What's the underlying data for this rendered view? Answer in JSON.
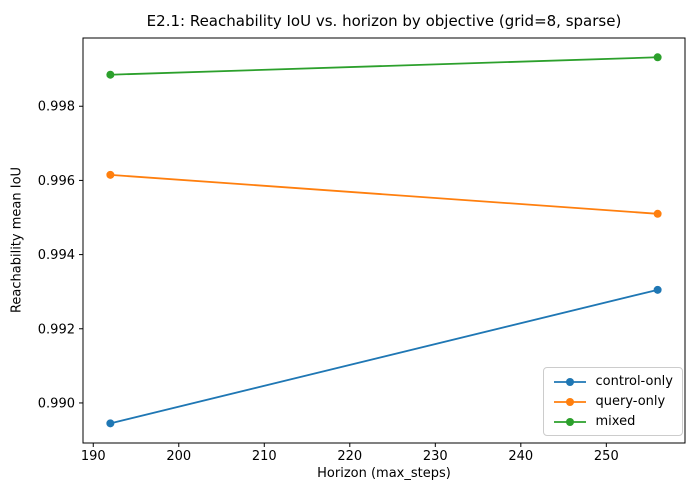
{
  "chart_data": {
    "type": "line",
    "title": "E2.1: Reachability IoU vs. horizon by objective (grid=8, sparse)",
    "xlabel": "Horizon (max_steps)",
    "ylabel": "Reachability mean IoU",
    "x": [
      192,
      256
    ],
    "series": [
      {
        "name": "control-only",
        "color": "#1f77b4",
        "values": [
          0.98945,
          0.99305
        ]
      },
      {
        "name": "query-only",
        "color": "#ff7f0e",
        "values": [
          0.99615,
          0.9951
        ]
      },
      {
        "name": "mixed",
        "color": "#2ca02c",
        "values": [
          0.99885,
          0.99932
        ]
      }
    ],
    "xticks": [
      {
        "value": 190,
        "label": "190"
      },
      {
        "value": 200,
        "label": "200"
      },
      {
        "value": 210,
        "label": "210"
      },
      {
        "value": 220,
        "label": "220"
      },
      {
        "value": 230,
        "label": "230"
      },
      {
        "value": 240,
        "label": "240"
      },
      {
        "value": 250,
        "label": "250"
      }
    ],
    "yticks": [
      {
        "value": 0.99,
        "label": "0.990"
      },
      {
        "value": 0.992,
        "label": "0.992"
      },
      {
        "value": 0.994,
        "label": "0.994"
      },
      {
        "value": 0.996,
        "label": "0.996"
      },
      {
        "value": 0.998,
        "label": "0.998"
      }
    ],
    "xlim": [
      188.8,
      259.2
    ],
    "ylim": [
      0.98892,
      0.99984
    ],
    "grid": false,
    "marker": "o",
    "legend_position": "lower right"
  }
}
